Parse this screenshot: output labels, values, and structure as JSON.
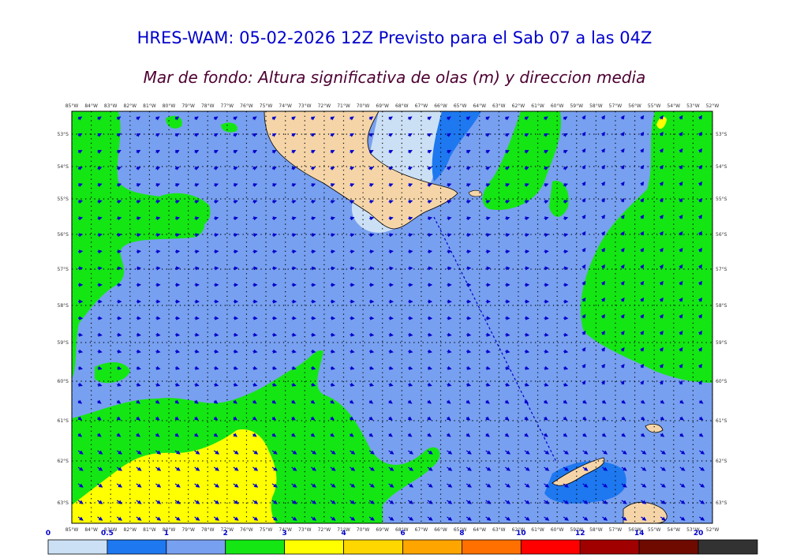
{
  "title": "HRES-WAM: 05-02-2026 12Z Previsto para el Sab 07 a las 04Z",
  "subtitle": "Mar de fondo: Altura significativa de olas (m) y direccion media",
  "lon_labels": [
    "85°W",
    "84°W",
    "83°W",
    "82°W",
    "81°W",
    "80°W",
    "79°W",
    "78°W",
    "77°W",
    "76°W",
    "75°W",
    "74°W",
    "73°W",
    "72°W",
    "71°W",
    "70°W",
    "69°W",
    "68°W",
    "67°W",
    "66°W",
    "65°W",
    "64°W",
    "63°W",
    "62°W",
    "61°W",
    "60°W",
    "59°W",
    "58°W",
    "57°W",
    "56°W",
    "55°W",
    "54°W",
    "53°W",
    "52°W"
  ],
  "lat_labels": [
    "53°S",
    "54°S",
    "55°S",
    "56°S",
    "57°S",
    "58°S",
    "59°S",
    "60°S",
    "61°S",
    "62°S",
    "63°S"
  ],
  "colorbar": {
    "labels": [
      "0",
      "0.5",
      "1",
      "2",
      "3",
      "4",
      "6",
      "8",
      "10",
      "12",
      "14",
      "20"
    ],
    "colors": [
      "#cce0f5",
      "#1e78f0",
      "#78a0f0",
      "#14e614",
      "#ffff00",
      "#ffd700",
      "#ffa500",
      "#ff7000",
      "#ff0000",
      "#a00000",
      "#6e0a00",
      "#323232"
    ]
  },
  "colors": {
    "land": "#f5d5a8",
    "swell_0_5": "#cce0f5",
    "swell_0_5_1": "#1e78f0",
    "swell_1_2": "#78a0f0",
    "swell_2_3": "#14e614",
    "swell_3_4": "#ffff00",
    "arrow": "#0000cc"
  }
}
